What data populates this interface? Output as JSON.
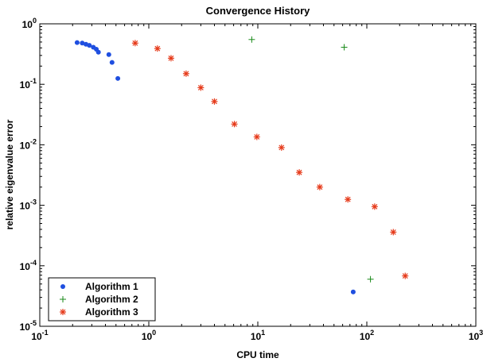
{
  "chart_data": {
    "type": "scatter",
    "title": "Convergence History",
    "xlabel": "CPU time",
    "ylabel": "relative eigenvalue error",
    "xscale": "log",
    "yscale": "log",
    "xlim": [
      0.1,
      1000
    ],
    "ylim": [
      1e-05,
      1
    ],
    "x_ticks": [
      {
        "value": 0.1,
        "base": "10",
        "exp": "-1"
      },
      {
        "value": 1,
        "base": "10",
        "exp": "0"
      },
      {
        "value": 10,
        "base": "10",
        "exp": "1"
      },
      {
        "value": 100,
        "base": "10",
        "exp": "2"
      },
      {
        "value": 1000,
        "base": "10",
        "exp": "3"
      }
    ],
    "y_ticks": [
      {
        "value": 1e-05,
        "base": "10",
        "exp": "-5"
      },
      {
        "value": 0.0001,
        "base": "10",
        "exp": "-4"
      },
      {
        "value": 0.001,
        "base": "10",
        "exp": "-3"
      },
      {
        "value": 0.01,
        "base": "10",
        "exp": "-2"
      },
      {
        "value": 0.1,
        "base": "10",
        "exp": "-1"
      },
      {
        "value": 1,
        "base": "10",
        "exp": "0"
      }
    ],
    "grid": false,
    "legend_position": "bottom-left",
    "series": [
      {
        "name": "Algorithm 1",
        "marker": "dot",
        "color": "#1f4fe0",
        "points": [
          [
            0.22,
            0.49
          ],
          [
            0.245,
            0.48
          ],
          [
            0.265,
            0.46
          ],
          [
            0.285,
            0.44
          ],
          [
            0.31,
            0.41
          ],
          [
            0.33,
            0.38
          ],
          [
            0.345,
            0.34
          ],
          [
            0.43,
            0.31
          ],
          [
            0.46,
            0.23
          ],
          [
            0.52,
            0.125
          ],
          [
            75,
            3.7e-05
          ]
        ]
      },
      {
        "name": "Algorithm 2",
        "marker": "plus",
        "color": "#1a8a1a",
        "points": [
          [
            8.8,
            0.55
          ],
          [
            62,
            0.41
          ],
          [
            108,
            6e-05
          ]
        ]
      },
      {
        "name": "Algorithm 3",
        "marker": "asterisk",
        "color": "#e63a1a",
        "points": [
          [
            0.75,
            0.48
          ],
          [
            1.2,
            0.39
          ],
          [
            1.6,
            0.27
          ],
          [
            2.2,
            0.15
          ],
          [
            3.0,
            0.088
          ],
          [
            4.0,
            0.052
          ],
          [
            6.1,
            0.022
          ],
          [
            9.8,
            0.0135
          ],
          [
            16.5,
            0.009
          ],
          [
            24,
            0.0035
          ],
          [
            37,
            0.002
          ],
          [
            67,
            0.00125
          ],
          [
            118,
            0.00095
          ],
          [
            175,
            0.00036
          ],
          [
            225,
            6.8e-05
          ]
        ]
      }
    ]
  }
}
